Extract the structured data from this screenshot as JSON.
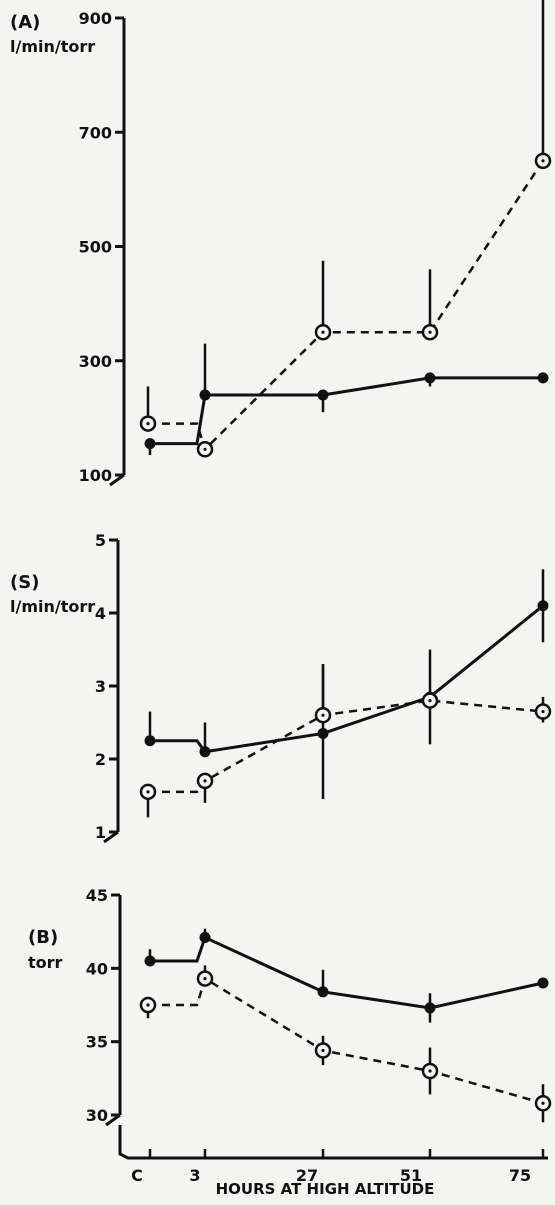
{
  "chart_data": [
    {
      "type": "line",
      "panel_label": "(A)",
      "unit": "l/min/torr",
      "x": [
        "C",
        "3",
        "27",
        "51",
        "75"
      ],
      "ylim": [
        100,
        900
      ],
      "yticks": [
        "100",
        "300",
        "500",
        "700",
        "900"
      ],
      "series": [
        {
          "style": "solid",
          "marker": "filled-circle",
          "values": [
            155,
            240,
            240,
            270,
            270
          ],
          "err_low": [
            20,
            0,
            30,
            15,
            0
          ],
          "err_high": [
            0,
            90,
            0,
            0,
            0
          ]
        },
        {
          "style": "dashed",
          "marker": "open-circle",
          "values": [
            190,
            145,
            350,
            350,
            650
          ],
          "err_low": [
            0,
            0,
            0,
            0,
            0
          ],
          "err_high": [
            65,
            0,
            125,
            110,
            300
          ]
        }
      ]
    },
    {
      "type": "line",
      "panel_label": "(S)",
      "unit": "l/min/torr",
      "x": [
        "C",
        "3",
        "27",
        "51",
        "75"
      ],
      "ylim": [
        1,
        5
      ],
      "yticks": [
        "1",
        "2",
        "3",
        "4",
        "5"
      ],
      "series": [
        {
          "style": "solid",
          "marker": "filled-circle",
          "values": [
            2.25,
            2.1,
            2.35,
            2.85,
            4.1
          ],
          "err_low": [
            0,
            0,
            0.9,
            0.65,
            0.5
          ],
          "err_high": [
            0.4,
            0.4,
            0.95,
            0.65,
            0.5
          ]
        },
        {
          "style": "dashed",
          "marker": "open-circle",
          "values": [
            1.55,
            1.7,
            2.6,
            2.8,
            2.65
          ],
          "err_low": [
            0.35,
            0.3,
            0,
            0,
            0.15
          ],
          "err_high": [
            0,
            0,
            0.7,
            0,
            0.2
          ]
        }
      ]
    },
    {
      "type": "line",
      "panel_label": "(B)",
      "unit": "torr",
      "x": [
        "C",
        "3",
        "27",
        "51",
        "75"
      ],
      "ylim": [
        30,
        45
      ],
      "yticks": [
        "30",
        "35",
        "40",
        "45"
      ],
      "series": [
        {
          "style": "solid",
          "marker": "filled-circle",
          "values": [
            40.5,
            42.1,
            38.4,
            37.3,
            39.0
          ],
          "err_low": [
            0,
            0,
            0,
            1.0,
            0
          ],
          "err_high": [
            0.8,
            0.6,
            1.5,
            1.0,
            0.3
          ]
        },
        {
          "style": "dashed",
          "marker": "open-circle",
          "values": [
            37.5,
            39.3,
            34.4,
            33.0,
            30.8
          ],
          "err_low": [
            0.9,
            0,
            1.0,
            1.6,
            1.3
          ],
          "err_high": [
            0,
            0.9,
            1.0,
            1.6,
            1.3
          ]
        }
      ]
    }
  ],
  "x_axis": {
    "ticks": [
      "C",
      "3",
      "27",
      "51",
      "75"
    ],
    "label": "HOURS AT HIGH ALTITUDE"
  }
}
